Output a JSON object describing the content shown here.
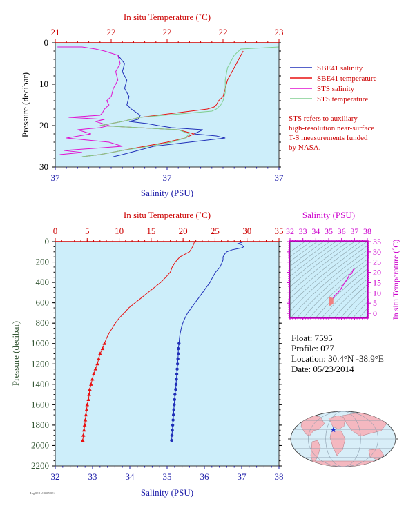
{
  "colors": {
    "plot_bg": "#cdeefa",
    "salinity": "#1f2fb8",
    "temperature": "#e81010",
    "sts_salinity": "#e010d0",
    "sts_temperature": "#7fce8f",
    "axis_red": "#cc0000",
    "axis_blue": "#1a1aa8",
    "axis_green": "#335533",
    "axis_magenta": "#cc00cc"
  },
  "footer_tag": "Aug2014 v1.03052014",
  "legend": {
    "items": [
      {
        "label": "SBE41 salinity",
        "color": "#1f2fb8"
      },
      {
        "label": "SBE41 temperature",
        "color": "#e81010"
      },
      {
        "label": "STS salinity",
        "color": "#e010d0"
      },
      {
        "label": "STS temperature",
        "color": "#7fce8f"
      }
    ],
    "note": [
      "STS refers to auxiliary",
      "high-resolution near-surface",
      "T-S measurements funded",
      "by NASA."
    ]
  },
  "info": {
    "float": "Float:  7595",
    "profile": "Profile:  077",
    "location": "Location:  30.4°N  -38.9°E",
    "date": "Date:  05/23/2014"
  },
  "map": {
    "marker_lon": -38.9,
    "marker_lat": 30.4
  },
  "chart_data": [
    {
      "type": "line",
      "title": "",
      "top_axis_label": "In situ Temperature (˚C)",
      "top_ticks": [
        "21",
        "22",
        "22",
        "22",
        "23"
      ],
      "xlabel": "Salinity (PSU)",
      "bottom_ticks": [
        "37",
        "37",
        "37"
      ],
      "ylabel": "Pressure (decibar)",
      "y_ticks": [
        0,
        10,
        20,
        30
      ],
      "ylim": [
        0,
        30
      ],
      "series": [
        {
          "name": "SBE41 salinity",
          "x": [
            0.28,
            0.31,
            0.3,
            0.32,
            0.31,
            0.33,
            0.32,
            0.34,
            0.38,
            0.37,
            0.33,
            0.41,
            0.46,
            0.52,
            0.66,
            0.62,
            0.72,
            0.76,
            0.6,
            0.44,
            0.37,
            0.3,
            0.26
          ],
          "y": [
            3,
            5,
            7,
            9,
            11,
            13,
            15,
            16,
            17.5,
            18.5,
            19,
            19.5,
            20,
            20.5,
            21,
            22,
            22.5,
            23,
            24,
            25,
            26,
            27,
            27.5
          ]
        },
        {
          "name": "SBE41 temperature",
          "x": [
            0.84,
            0.83,
            0.81,
            0.79,
            0.77,
            0.76,
            0.75,
            0.73,
            0.72,
            0.71,
            0.68,
            0.38,
            0.3,
            0.2,
            0.55,
            0.62,
            0.58,
            0.5,
            0.4,
            0.3,
            0.2,
            0.12
          ],
          "y": [
            2,
            3,
            5,
            7,
            9,
            11,
            13,
            14,
            15,
            15.5,
            16,
            18,
            19,
            20,
            21,
            22,
            23,
            24,
            25,
            26,
            27,
            27.5
          ]
        },
        {
          "name": "STS salinity",
          "x": [
            0.01,
            0.12,
            0.18,
            0.22,
            0.28,
            0.29,
            0.27,
            0.28,
            0.26,
            0.25,
            0.23,
            0.24,
            0.22,
            0.21,
            0.2,
            0.06,
            0.22,
            0.18,
            0.24,
            0.2,
            0.1,
            0.16,
            0.05,
            0.24,
            0.3,
            0.04,
            0.12,
            0.02
          ],
          "y": [
            1,
            1,
            1.5,
            2,
            3,
            5,
            7,
            9,
            11,
            13,
            14,
            15,
            16,
            17,
            17.5,
            18,
            18.5,
            19,
            20,
            20.5,
            21,
            22,
            23,
            24,
            25,
            26,
            26.5,
            27
          ]
        },
        {
          "name": "STS temperature",
          "x": [
            1.0,
            0.83,
            0.8,
            0.77,
            0.76,
            0.76,
            0.75,
            0.74,
            0.73,
            0.72,
            0.7,
            0.38,
            0.3,
            0.2,
            0.55,
            0.6,
            0.58,
            0.52,
            0.42,
            0.3,
            0.2,
            0.12
          ],
          "y": [
            1,
            1.5,
            3,
            6,
            9,
            12,
            14,
            15,
            15.5,
            16,
            16.5,
            18,
            19,
            20,
            21,
            22,
            23,
            24,
            25,
            26,
            27,
            27.5
          ]
        }
      ]
    },
    {
      "type": "line",
      "title": "",
      "top_axis_label": "In situ Temperature (˚C)",
      "top_ticks": [
        0,
        5,
        10,
        15,
        20,
        25,
        30,
        35
      ],
      "xlabel": "Salinity (PSU)",
      "bottom_ticks": [
        32,
        33,
        34,
        35,
        36,
        37,
        38
      ],
      "ylabel": "Pressure (decibar)",
      "y_ticks": [
        0,
        200,
        400,
        600,
        800,
        1000,
        1200,
        1400,
        1600,
        1800,
        2000,
        2200
      ],
      "ylim": [
        0,
        2200
      ],
      "series": [
        {
          "name": "Salinity",
          "axis": "salinity",
          "p": [
            0,
            10,
            20,
            30,
            40,
            50,
            60,
            80,
            100,
            120,
            150,
            180,
            200,
            250,
            300,
            350,
            400,
            450,
            500,
            550,
            600,
            650,
            700,
            750,
            800,
            850,
            900,
            950,
            1000,
            1050,
            1100,
            1150,
            1200,
            1250,
            1300,
            1350,
            1400,
            1450,
            1500,
            1550,
            1600,
            1650,
            1700,
            1750,
            1800,
            1850,
            1900,
            1950
          ],
          "v": [
            37.05,
            36.98,
            36.9,
            37.0,
            37.02,
            37.05,
            37.02,
            36.75,
            36.6,
            36.55,
            36.5,
            36.5,
            36.48,
            36.42,
            36.3,
            36.22,
            36.15,
            36.05,
            35.95,
            35.85,
            35.75,
            35.65,
            35.55,
            35.48,
            35.42,
            35.38,
            35.35,
            35.33,
            35.32,
            35.3,
            35.3,
            35.29,
            35.28,
            35.27,
            35.26,
            35.25,
            35.24,
            35.23,
            35.21,
            35.2,
            35.19,
            35.18,
            35.17,
            35.16,
            35.15,
            35.14,
            35.13,
            35.12
          ]
        },
        {
          "name": "Temperature",
          "axis": "temperature",
          "p": [
            0,
            50,
            100,
            150,
            200,
            250,
            300,
            350,
            400,
            450,
            500,
            550,
            600,
            650,
            700,
            750,
            800,
            850,
            900,
            950,
            1000,
            1050,
            1100,
            1150,
            1200,
            1250,
            1300,
            1350,
            1400,
            1450,
            1500,
            1550,
            1600,
            1650,
            1700,
            1750,
            1800,
            1850,
            1900,
            1950
          ],
          "v": [
            21.8,
            21.5,
            21.0,
            19.5,
            18.8,
            18.3,
            18.0,
            17.3,
            16.5,
            15.5,
            14.5,
            13.5,
            12.5,
            11.5,
            10.8,
            10.0,
            9.4,
            8.9,
            8.4,
            8.0,
            7.7,
            7.4,
            7.0,
            6.8,
            6.6,
            6.3,
            6.0,
            5.8,
            5.6,
            5.4,
            5.3,
            5.2,
            5.0,
            4.9,
            4.8,
            4.7,
            4.6,
            4.5,
            4.4,
            4.3
          ]
        }
      ]
    },
    {
      "type": "scatter",
      "title": "",
      "top_axis_label": "Salinity (PSU)",
      "top_ticks": [
        32,
        33,
        34,
        35,
        36,
        37,
        38
      ],
      "ylabel": "In situ Temperature (˚C)",
      "y_ticks": [
        0,
        5,
        10,
        15,
        20,
        25,
        30,
        35
      ],
      "xlim": [
        32,
        38
      ],
      "ylim": [
        -2,
        35
      ],
      "series": [
        {
          "name": "T-S",
          "s": [
            37.0,
            36.9,
            36.8,
            36.6,
            36.5,
            36.3,
            36.1,
            35.9,
            35.7,
            35.5,
            35.4,
            35.3,
            35.25,
            35.2,
            35.15
          ],
          "t": [
            21.8,
            21.3,
            19.5,
            18.8,
            17.3,
            15.5,
            13.5,
            11.5,
            10.0,
            8.9,
            8.0,
            7.0,
            6.3,
            5.6,
            4.8
          ]
        }
      ]
    }
  ]
}
